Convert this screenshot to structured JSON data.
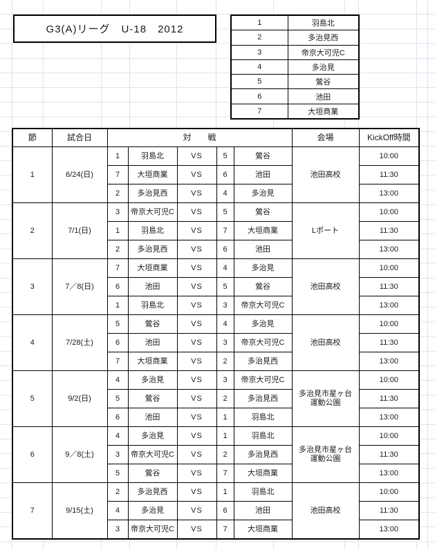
{
  "title": "G3(A)リーグ　U-18　2012",
  "accent_colors": {
    "gridline": "#dde3ef",
    "border": "#000000",
    "background": "#ffffff"
  },
  "teams": [
    {
      "no": "1",
      "name": "羽島北"
    },
    {
      "no": "2",
      "name": "多治見西"
    },
    {
      "no": "3",
      "name": "帝京大可児C"
    },
    {
      "no": "4",
      "name": "多治見"
    },
    {
      "no": "5",
      "name": "鶯谷"
    },
    {
      "no": "6",
      "name": "池田"
    },
    {
      "no": "7",
      "name": "大垣商業"
    }
  ],
  "schedule": {
    "headers": {
      "round": "節",
      "date": "試合日",
      "match": "対　　戦",
      "venue": "会場",
      "kickoff": "KickOff時間"
    },
    "vs_label": "VS",
    "rounds": [
      {
        "round": "1",
        "date": "6/24(日)",
        "venue": "池田高校",
        "matches": [
          {
            "home_no": "1",
            "home": "羽島北",
            "away_no": "5",
            "away": "鶯谷",
            "time": "10:00"
          },
          {
            "home_no": "7",
            "home": "大垣商業",
            "away_no": "6",
            "away": "池田",
            "time": "11:30"
          },
          {
            "home_no": "2",
            "home": "多治見西",
            "away_no": "4",
            "away": "多治見",
            "time": "13:00"
          }
        ]
      },
      {
        "round": "2",
        "date": "7/1(日)",
        "venue": "Lポート",
        "matches": [
          {
            "home_no": "3",
            "home": "帝京大可児C",
            "away_no": "5",
            "away": "鶯谷",
            "time": "10:00"
          },
          {
            "home_no": "1",
            "home": "羽島北",
            "away_no": "7",
            "away": "大垣商業",
            "time": "11:30"
          },
          {
            "home_no": "2",
            "home": "多治見西",
            "away_no": "6",
            "away": "池田",
            "time": "13:00"
          }
        ]
      },
      {
        "round": "3",
        "date": "7／8(日)",
        "venue": "池田高校",
        "matches": [
          {
            "home_no": "7",
            "home": "大垣商業",
            "away_no": "4",
            "away": "多治見",
            "time": "10:00"
          },
          {
            "home_no": "6",
            "home": "池田",
            "away_no": "5",
            "away": "鶯谷",
            "time": "11:30"
          },
          {
            "home_no": "1",
            "home": "羽島北",
            "away_no": "3",
            "away": "帝京大可児C",
            "time": "13:00"
          }
        ]
      },
      {
        "round": "4",
        "date": "7/28(土)",
        "venue": "池田高校",
        "matches": [
          {
            "home_no": "5",
            "home": "鶯谷",
            "away_no": "4",
            "away": "多治見",
            "time": "10:00"
          },
          {
            "home_no": "6",
            "home": "池田",
            "away_no": "3",
            "away": "帝京大可児C",
            "time": "11:30"
          },
          {
            "home_no": "7",
            "home": "大垣商業",
            "away_no": "2",
            "away": "多治見西",
            "time": "13:00"
          }
        ]
      },
      {
        "round": "5",
        "date": "9/2(日)",
        "venue": "多治見市星ヶ台\n運動公園",
        "matches": [
          {
            "home_no": "4",
            "home": "多治見",
            "away_no": "3",
            "away": "帝京大可児C",
            "time": "10:00"
          },
          {
            "home_no": "5",
            "home": "鶯谷",
            "away_no": "2",
            "away": "多治見西",
            "time": "11:30"
          },
          {
            "home_no": "6",
            "home": "池田",
            "away_no": "1",
            "away": "羽島北",
            "time": "13:00"
          }
        ]
      },
      {
        "round": "6",
        "date": "9／8(土)",
        "venue": "多治見市星ヶ台\n運動公園",
        "matches": [
          {
            "home_no": "4",
            "home": "多治見",
            "away_no": "1",
            "away": "羽島北",
            "time": "10:00"
          },
          {
            "home_no": "3",
            "home": "帝京大可児C",
            "away_no": "2",
            "away": "多治見西",
            "time": "11:30"
          },
          {
            "home_no": "5",
            "home": "鶯谷",
            "away_no": "7",
            "away": "大垣商業",
            "time": "13:00"
          }
        ]
      },
      {
        "round": "7",
        "date": "9/15(土)",
        "venue": "池田高校",
        "matches": [
          {
            "home_no": "2",
            "home": "多治見西",
            "away_no": "1",
            "away": "羽島北",
            "time": "10:00"
          },
          {
            "home_no": "4",
            "home": "多治見",
            "away_no": "6",
            "away": "池田",
            "time": "11:30"
          },
          {
            "home_no": "3",
            "home": "帝京大可児C",
            "away_no": "7",
            "away": "大垣商業",
            "time": "13:00"
          }
        ]
      }
    ]
  }
}
